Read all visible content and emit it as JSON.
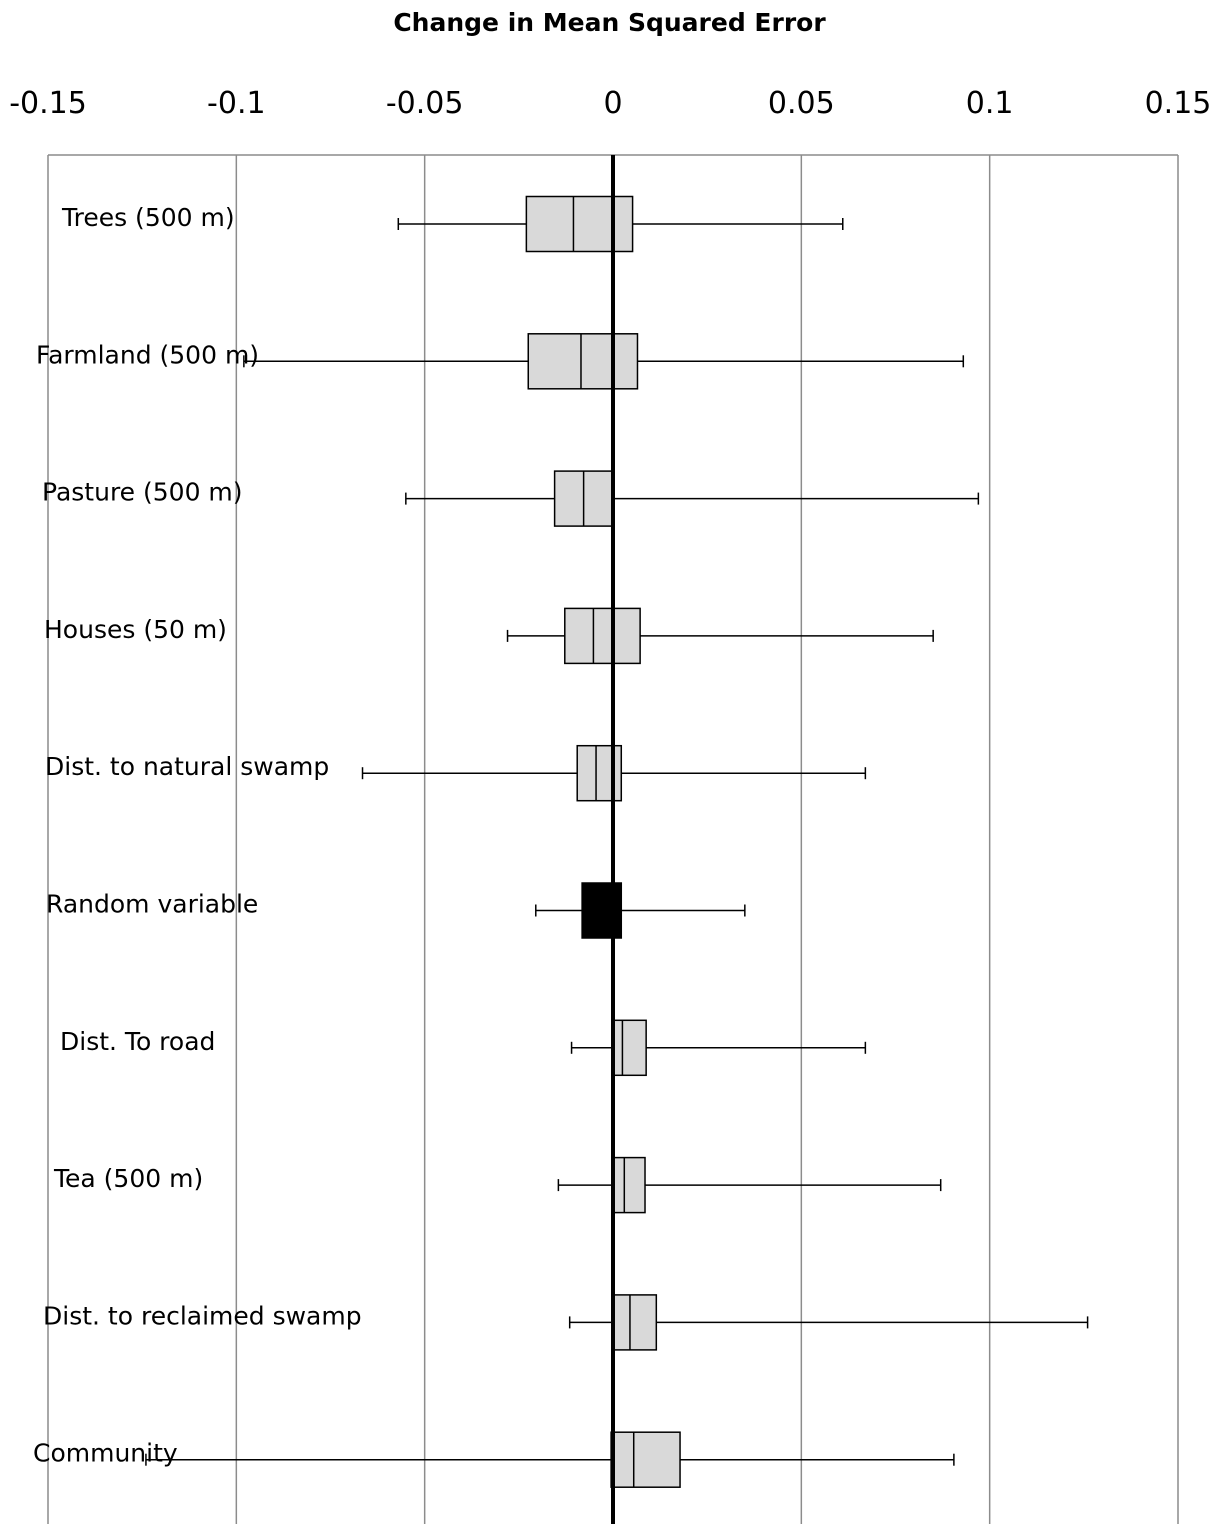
{
  "chart_data": {
    "type": "boxplot",
    "orientation": "horizontal",
    "title": "Change in Mean Squared Error",
    "xlim": [
      -0.15,
      0.15
    ],
    "xticks": [
      -0.15,
      -0.1,
      -0.05,
      0,
      0.05,
      0.1,
      0.15
    ],
    "xtick_labels": [
      "-0.15",
      "-0.1",
      "-0.05",
      "0",
      "0.05",
      "0.1",
      "0.15"
    ],
    "axis_position": "top",
    "grid": true,
    "reference_line": 0,
    "colors": {
      "box": "#d9d9d9",
      "highlight_box": "#000000",
      "grid": "#8c8c8c",
      "line": "#000000"
    },
    "categories": [
      {
        "label": "Trees (500 m)",
        "min": -0.057,
        "q1": -0.023,
        "median": -0.0105,
        "q3": 0.0052,
        "max": 0.061
      },
      {
        "label": "Farmland (500 m)",
        "min": -0.098,
        "q1": -0.0225,
        "median": -0.0085,
        "q3": 0.0065,
        "max": 0.093
      },
      {
        "label": "Pasture (500 m)",
        "min": -0.055,
        "q1": -0.0155,
        "median": -0.0078,
        "q3": 0.0,
        "max": 0.097
      },
      {
        "label": "Houses (50 m)",
        "min": -0.028,
        "q1": -0.0128,
        "median": -0.0052,
        "q3": 0.0072,
        "max": 0.085
      },
      {
        "label": "Dist. to natural swamp",
        "min": -0.0665,
        "q1": -0.0095,
        "median": -0.0045,
        "q3": 0.0022,
        "max": 0.067
      },
      {
        "label": "Random variable",
        "min": -0.0205,
        "q1": -0.0082,
        "median": -0.0035,
        "q3": 0.0022,
        "max": 0.035,
        "highlight": true
      },
      {
        "label": "Dist. To road",
        "min": -0.011,
        "q1": 0.0002,
        "median": 0.0025,
        "q3": 0.0088,
        "max": 0.067
      },
      {
        "label": "Tea (500 m)",
        "min": -0.0145,
        "q1": 0.0002,
        "median": 0.003,
        "q3": 0.0085,
        "max": 0.087
      },
      {
        "label": "Dist. to reclaimed swamp",
        "min": -0.0115,
        "q1": 0.0,
        "median": 0.0045,
        "q3": 0.0115,
        "max": 0.126
      },
      {
        "label": "Community",
        "min": -0.124,
        "q1": -0.0005,
        "median": 0.0055,
        "q3": 0.0178,
        "max": 0.0905
      }
    ]
  }
}
